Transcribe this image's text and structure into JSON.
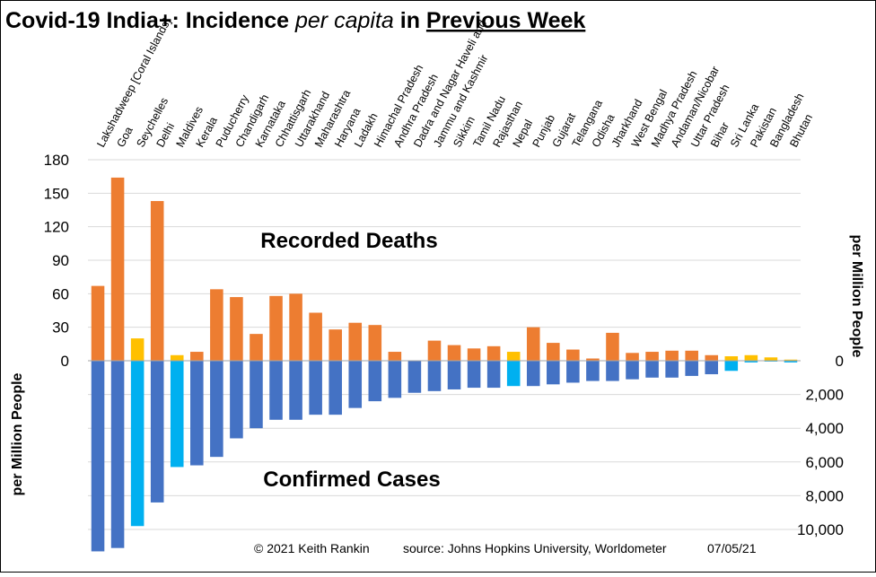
{
  "chart_data": {
    "type": "bar",
    "title_parts": {
      "part1": "Covid-19 India+: Incidence ",
      "part2": "per capita",
      "part3": " in ",
      "part4": "Previous Week"
    },
    "left_axis_label": "per Million People",
    "right_axis_label": "per Million People",
    "deaths_label": "Recorded Deaths",
    "cases_label": "Confirmed Cases",
    "footer": {
      "copyright": "© 2021  Keith Rankin",
      "source": "source: Johns Hopkins University,  Worldometer",
      "date": "07/05/21"
    },
    "deaths_axis": {
      "min": 0,
      "max": 180,
      "ticks": [
        0,
        30,
        60,
        90,
        120,
        150,
        180
      ]
    },
    "cases_axis": {
      "min": 0,
      "max": 10000,
      "ticks": [
        "0",
        "2,000",
        "4,000",
        "6,000",
        "8,000",
        "10,000"
      ],
      "tick_values": [
        0,
        2000,
        4000,
        6000,
        8000,
        10000
      ]
    },
    "categories": [
      "Lakshadweep [Coral Islands]",
      "Goa",
      "Seychelles",
      "Delhi",
      "Maldives",
      "Kerala",
      "Puducherry",
      "Chandigarh",
      "Karnataka",
      "Chhattisgarh",
      "Uttarakhand",
      "Maharashtra",
      "Haryana",
      "Ladakh",
      "Himachal Pradesh",
      "Andhra Pradesh",
      "Dadra and Nagar Haveli and",
      "Jammu and Kashmir",
      "Sikkim",
      "Tamil Nadu",
      "Rajasthan",
      "Nepal",
      "Punjab",
      "Gujarat",
      "Telangana",
      "Odisha",
      "Jharkhand",
      "West Bengal",
      "Madhya Pradesh",
      "Andaman/Nicobar",
      "Uttar Pradesh",
      "Bihar",
      "Sri Lanka",
      "Pakistan",
      "Bangladesh",
      "Bhutan"
    ],
    "series": [
      {
        "name": "Recorded Deaths",
        "values": [
          67,
          164,
          20,
          143,
          5,
          8,
          64,
          57,
          24,
          58,
          60,
          43,
          28,
          34,
          32,
          8,
          0,
          18,
          14,
          11,
          13,
          8,
          30,
          16,
          10,
          2,
          25,
          7,
          8,
          9,
          9,
          5,
          4,
          5,
          3,
          1
        ]
      },
      {
        "name": "Confirmed Cases",
        "values": [
          11300,
          11100,
          9800,
          8400,
          6300,
          6200,
          5700,
          4600,
          4000,
          3500,
          3500,
          3200,
          3200,
          2800,
          2400,
          2200,
          1900,
          1800,
          1700,
          1600,
          1600,
          1500,
          1500,
          1400,
          1300,
          1200,
          1200,
          1100,
          1000,
          1000,
          900,
          800,
          600,
          100,
          50,
          100
        ]
      }
    ],
    "highlight": [
      false,
      false,
      true,
      false,
      true,
      false,
      false,
      false,
      false,
      false,
      false,
      false,
      false,
      false,
      false,
      false,
      false,
      false,
      false,
      false,
      false,
      true,
      false,
      false,
      false,
      false,
      false,
      false,
      false,
      false,
      false,
      false,
      true,
      true,
      true,
      true
    ],
    "colors": {
      "deaths": "#ED7D31",
      "deaths_highlight": "#FFC000",
      "cases": "#4472C4",
      "cases_highlight": "#00B0F0",
      "grid": "#D9D9D9"
    },
    "grid": true
  }
}
